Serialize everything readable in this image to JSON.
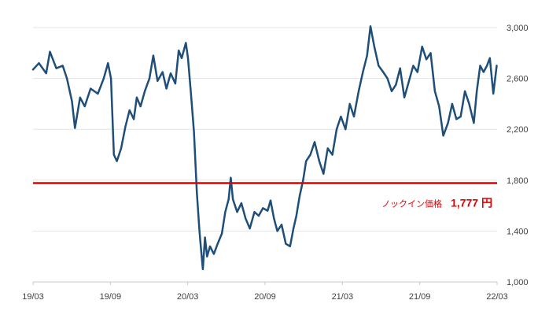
{
  "chart_data": {
    "type": "line",
    "title": "",
    "xlabel": "",
    "ylabel": "",
    "ylim": [
      1000,
      3000
    ],
    "xlim": [
      "2019-03",
      "2022-03"
    ],
    "grid": true,
    "x_tick_labels": [
      "19/03",
      "19/09",
      "20/03",
      "20/09",
      "21/03",
      "21/09",
      "22/03"
    ],
    "y_ticks": [
      1000,
      1400,
      1800,
      2200,
      2600,
      3000
    ],
    "y_tick_labels": [
      "1,000",
      "1,400",
      "1,800",
      "2,200",
      "2,600",
      "3,000"
    ],
    "series": [
      {
        "color": "#1f4e79",
        "points": [
          [
            "2019-03-01",
            2670
          ],
          [
            "2019-03-15",
            2720
          ],
          [
            "2019-04-01",
            2640
          ],
          [
            "2019-04-10",
            2810
          ],
          [
            "2019-04-25",
            2680
          ],
          [
            "2019-05-10",
            2700
          ],
          [
            "2019-05-20",
            2600
          ],
          [
            "2019-06-01",
            2420
          ],
          [
            "2019-06-08",
            2210
          ],
          [
            "2019-06-20",
            2450
          ],
          [
            "2019-07-01",
            2380
          ],
          [
            "2019-07-15",
            2520
          ],
          [
            "2019-08-01",
            2480
          ],
          [
            "2019-08-15",
            2600
          ],
          [
            "2019-08-25",
            2720
          ],
          [
            "2019-09-01",
            2600
          ],
          [
            "2019-09-08",
            2000
          ],
          [
            "2019-09-15",
            1950
          ],
          [
            "2019-09-25",
            2050
          ],
          [
            "2019-10-05",
            2220
          ],
          [
            "2019-10-15",
            2350
          ],
          [
            "2019-10-25",
            2280
          ],
          [
            "2019-11-01",
            2450
          ],
          [
            "2019-11-10",
            2380
          ],
          [
            "2019-11-20",
            2500
          ],
          [
            "2019-12-01",
            2600
          ],
          [
            "2019-12-10",
            2780
          ],
          [
            "2019-12-20",
            2580
          ],
          [
            "2020-01-01",
            2650
          ],
          [
            "2020-01-10",
            2520
          ],
          [
            "2020-01-20",
            2640
          ],
          [
            "2020-01-31",
            2560
          ],
          [
            "2020-02-08",
            2820
          ],
          [
            "2020-02-15",
            2760
          ],
          [
            "2020-02-25",
            2880
          ],
          [
            "2020-03-01",
            2760
          ],
          [
            "2020-03-08",
            2480
          ],
          [
            "2020-03-15",
            2180
          ],
          [
            "2020-03-22",
            1700
          ],
          [
            "2020-03-28",
            1400
          ],
          [
            "2020-04-01",
            1250
          ],
          [
            "2020-04-05",
            1100
          ],
          [
            "2020-04-10",
            1350
          ],
          [
            "2020-04-15",
            1200
          ],
          [
            "2020-04-22",
            1280
          ],
          [
            "2020-05-01",
            1220
          ],
          [
            "2020-05-10",
            1300
          ],
          [
            "2020-05-20",
            1380
          ],
          [
            "2020-05-28",
            1550
          ],
          [
            "2020-06-05",
            1650
          ],
          [
            "2020-06-10",
            1820
          ],
          [
            "2020-06-15",
            1650
          ],
          [
            "2020-06-25",
            1550
          ],
          [
            "2020-07-05",
            1620
          ],
          [
            "2020-07-15",
            1500
          ],
          [
            "2020-07-25",
            1420
          ],
          [
            "2020-08-05",
            1550
          ],
          [
            "2020-08-15",
            1520
          ],
          [
            "2020-08-25",
            1580
          ],
          [
            "2020-09-05",
            1560
          ],
          [
            "2020-09-12",
            1640
          ],
          [
            "2020-09-20",
            1500
          ],
          [
            "2020-09-28",
            1400
          ],
          [
            "2020-10-08",
            1450
          ],
          [
            "2020-10-18",
            1300
          ],
          [
            "2020-10-28",
            1280
          ],
          [
            "2020-11-05",
            1420
          ],
          [
            "2020-11-12",
            1520
          ],
          [
            "2020-11-20",
            1680
          ],
          [
            "2020-11-28",
            1800
          ],
          [
            "2020-12-05",
            1950
          ],
          [
            "2020-12-15",
            2000
          ],
          [
            "2020-12-25",
            2100
          ],
          [
            "2021-01-05",
            1950
          ],
          [
            "2021-01-15",
            1850
          ],
          [
            "2021-01-25",
            2050
          ],
          [
            "2021-02-05",
            2000
          ],
          [
            "2021-02-15",
            2200
          ],
          [
            "2021-02-25",
            2300
          ],
          [
            "2021-03-08",
            2200
          ],
          [
            "2021-03-18",
            2400
          ],
          [
            "2021-03-28",
            2300
          ],
          [
            "2021-04-08",
            2500
          ],
          [
            "2021-04-18",
            2650
          ],
          [
            "2021-04-28",
            2780
          ],
          [
            "2021-05-06",
            3010
          ],
          [
            "2021-05-15",
            2850
          ],
          [
            "2021-05-25",
            2700
          ],
          [
            "2021-06-05",
            2650
          ],
          [
            "2021-06-15",
            2600
          ],
          [
            "2021-06-25",
            2500
          ],
          [
            "2021-07-05",
            2550
          ],
          [
            "2021-07-15",
            2680
          ],
          [
            "2021-07-25",
            2450
          ],
          [
            "2021-08-05",
            2580
          ],
          [
            "2021-08-15",
            2700
          ],
          [
            "2021-08-25",
            2650
          ],
          [
            "2021-09-05",
            2850
          ],
          [
            "2021-09-15",
            2750
          ],
          [
            "2021-09-25",
            2800
          ],
          [
            "2021-10-05",
            2500
          ],
          [
            "2021-10-15",
            2380
          ],
          [
            "2021-10-25",
            2150
          ],
          [
            "2021-11-05",
            2250
          ],
          [
            "2021-11-15",
            2400
          ],
          [
            "2021-11-25",
            2280
          ],
          [
            "2021-12-05",
            2300
          ],
          [
            "2021-12-15",
            2500
          ],
          [
            "2021-12-25",
            2400
          ],
          [
            "2022-01-05",
            2250
          ],
          [
            "2022-01-12",
            2500
          ],
          [
            "2022-01-20",
            2700
          ],
          [
            "2022-01-28",
            2650
          ],
          [
            "2022-02-05",
            2700
          ],
          [
            "2022-02-12",
            2760
          ],
          [
            "2022-02-20",
            2480
          ],
          [
            "2022-02-28",
            2700
          ]
        ]
      }
    ],
    "reference_line": {
      "value": 1777,
      "color": "#e00000",
      "label": "ノックイン価格",
      "value_label": "1,777 円"
    }
  }
}
